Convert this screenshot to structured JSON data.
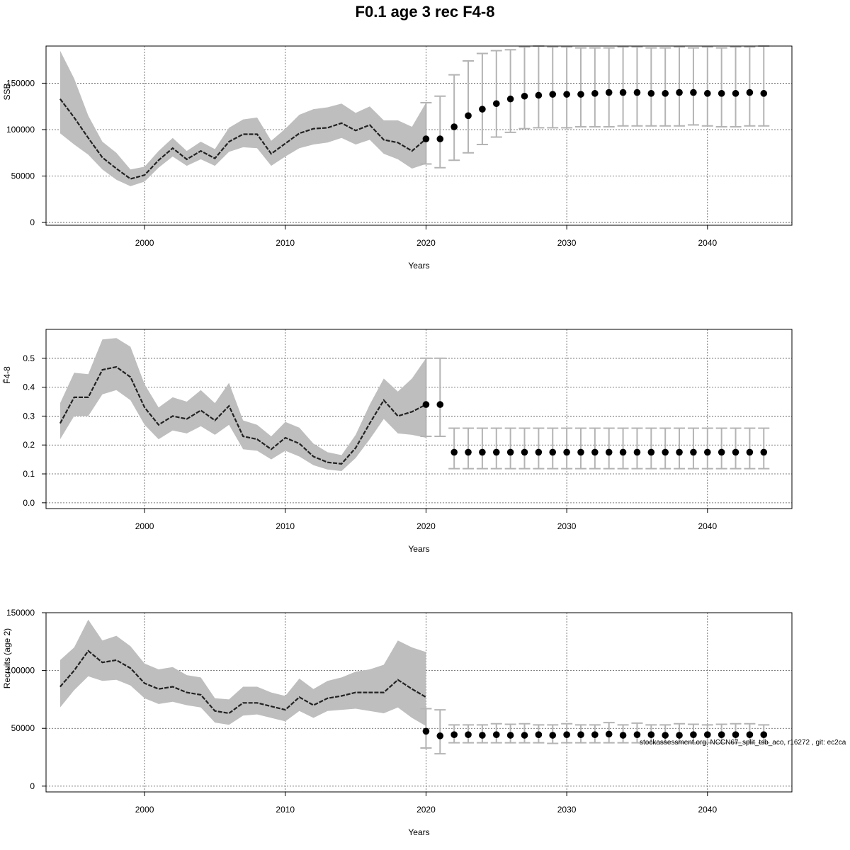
{
  "title": "F0.1 age 3 rec F4-8",
  "footnote": "stockassessment.org, NCCN67_split_tsb_aco, r16272 , git: ec2ca",
  "colors": {
    "band": "#bebebe",
    "line": "#222222",
    "errorbar": "#b4b4b4",
    "point": "#000000",
    "grid": "#555555"
  },
  "chart_data": [
    {
      "type": "line",
      "ylabel": "SSB",
      "xlabel": "Years",
      "xlim": [
        1993,
        2046
      ],
      "ylim": [
        -3000,
        190000
      ],
      "xticks": [
        2000,
        2010,
        2020,
        2030,
        2040
      ],
      "xtick_labels": [
        "2000",
        "2010",
        "2020",
        "2030",
        "2040"
      ],
      "yticks": [
        0,
        50000,
        100000,
        150000
      ],
      "ytick_labels": [
        "0",
        "50000",
        "100000",
        "150000"
      ],
      "grid": true,
      "historical": {
        "years": [
          1994,
          1995,
          1996,
          1997,
          1998,
          1999,
          2000,
          2001,
          2002,
          2003,
          2004,
          2005,
          2006,
          2007,
          2008,
          2009,
          2010,
          2011,
          2012,
          2013,
          2014,
          2015,
          2016,
          2017,
          2018,
          2019,
          2020
        ],
        "estimate": [
          133000,
          113000,
          91000,
          70000,
          58000,
          47000,
          51000,
          67000,
          80000,
          68000,
          77000,
          69000,
          87000,
          95000,
          95000,
          74000,
          85000,
          96000,
          101000,
          102000,
          107000,
          99000,
          105000,
          89000,
          86000,
          77000,
          90000
        ],
        "lower": [
          96000,
          84000,
          73000,
          57000,
          46000,
          39000,
          44000,
          59000,
          71000,
          61000,
          68000,
          61000,
          76000,
          81000,
          80000,
          61000,
          71000,
          80000,
          84000,
          86000,
          91000,
          84000,
          89000,
          74000,
          68000,
          58000,
          63000
        ],
        "upper": [
          185000,
          155000,
          115000,
          87000,
          75000,
          57000,
          60000,
          77000,
          91000,
          77000,
          87000,
          79000,
          102000,
          111000,
          113000,
          88000,
          101000,
          116000,
          122000,
          124000,
          128000,
          118000,
          125000,
          110000,
          110000,
          103000,
          129000
        ]
      },
      "forecast": {
        "years": [
          2020,
          2021,
          2022,
          2023,
          2024,
          2025,
          2026,
          2027,
          2028,
          2029,
          2030,
          2031,
          2032,
          2033,
          2034,
          2035,
          2036,
          2037,
          2038,
          2039,
          2040,
          2041,
          2042,
          2043,
          2044
        ],
        "median": [
          90000,
          90000,
          103000,
          115000,
          122000,
          128000,
          133000,
          136000,
          137000,
          138000,
          138000,
          138000,
          139000,
          140000,
          140000,
          140000,
          139000,
          139000,
          140000,
          140000,
          139000,
          139000,
          139000,
          140000,
          139000
        ],
        "lower": [
          63000,
          59000,
          67000,
          75000,
          84000,
          92000,
          97000,
          101000,
          102000,
          102000,
          102000,
          103000,
          103000,
          103000,
          104000,
          104000,
          104000,
          104000,
          104000,
          105000,
          104000,
          103000,
          103000,
          104000,
          104000
        ],
        "upper": [
          129000,
          136000,
          159000,
          174000,
          182000,
          185000,
          186000,
          189000,
          190000,
          189000,
          189000,
          188000,
          188000,
          188000,
          189000,
          189000,
          188000,
          188000,
          189000,
          188000,
          189000,
          188000,
          189000,
          189000,
          190000
        ]
      }
    },
    {
      "type": "line",
      "ylabel": "F̄4-8",
      "xlabel": "Years",
      "xlim": [
        1993,
        2046
      ],
      "ylim": [
        -0.02,
        0.6
      ],
      "xticks": [
        2000,
        2010,
        2020,
        2030,
        2040
      ],
      "xtick_labels": [
        "2000",
        "2010",
        "2020",
        "2030",
        "2040"
      ],
      "yticks": [
        0.0,
        0.1,
        0.2,
        0.3,
        0.4,
        0.5
      ],
      "ytick_labels": [
        "0.0",
        "0.1",
        "0.2",
        "0.3",
        "0.4",
        "0.5"
      ],
      "grid": true,
      "historical": {
        "years": [
          1994,
          1995,
          1996,
          1997,
          1998,
          1999,
          2000,
          2001,
          2002,
          2003,
          2004,
          2005,
          2006,
          2007,
          2008,
          2009,
          2010,
          2011,
          2012,
          2013,
          2014,
          2015,
          2016,
          2017,
          2018,
          2019,
          2020
        ],
        "estimate": [
          0.275,
          0.365,
          0.365,
          0.46,
          0.47,
          0.435,
          0.33,
          0.27,
          0.3,
          0.29,
          0.32,
          0.285,
          0.335,
          0.23,
          0.22,
          0.185,
          0.225,
          0.205,
          0.16,
          0.14,
          0.135,
          0.19,
          0.275,
          0.355,
          0.3,
          0.315,
          0.34
        ],
        "lower": [
          0.22,
          0.3,
          0.3,
          0.375,
          0.39,
          0.355,
          0.27,
          0.22,
          0.25,
          0.24,
          0.265,
          0.235,
          0.27,
          0.185,
          0.18,
          0.15,
          0.18,
          0.16,
          0.13,
          0.115,
          0.11,
          0.155,
          0.22,
          0.29,
          0.24,
          0.235,
          0.225
        ],
        "upper": [
          0.345,
          0.45,
          0.445,
          0.565,
          0.57,
          0.54,
          0.41,
          0.33,
          0.365,
          0.35,
          0.39,
          0.345,
          0.415,
          0.285,
          0.27,
          0.23,
          0.28,
          0.26,
          0.205,
          0.175,
          0.165,
          0.235,
          0.34,
          0.43,
          0.385,
          0.43,
          0.5
        ]
      },
      "forecast": {
        "years": [
          2020,
          2021,
          2022,
          2023,
          2024,
          2025,
          2026,
          2027,
          2028,
          2029,
          2030,
          2031,
          2032,
          2033,
          2034,
          2035,
          2036,
          2037,
          2038,
          2039,
          2040,
          2041,
          2042,
          2043,
          2044
        ],
        "median": [
          0.34,
          0.34,
          0.175,
          0.175,
          0.175,
          0.175,
          0.175,
          0.175,
          0.175,
          0.175,
          0.175,
          0.175,
          0.175,
          0.175,
          0.175,
          0.175,
          0.175,
          0.175,
          0.175,
          0.175,
          0.175,
          0.175,
          0.175,
          0.175,
          0.175
        ],
        "lower": [
          0.23,
          0.23,
          0.118,
          0.118,
          0.118,
          0.118,
          0.118,
          0.118,
          0.118,
          0.118,
          0.118,
          0.118,
          0.118,
          0.118,
          0.118,
          0.118,
          0.118,
          0.118,
          0.118,
          0.118,
          0.118,
          0.118,
          0.118,
          0.118,
          0.118
        ],
        "upper": [
          0.5,
          0.5,
          0.258,
          0.258,
          0.258,
          0.258,
          0.258,
          0.258,
          0.258,
          0.258,
          0.258,
          0.258,
          0.258,
          0.258,
          0.258,
          0.258,
          0.258,
          0.258,
          0.258,
          0.258,
          0.258,
          0.258,
          0.258,
          0.258,
          0.258
        ]
      }
    },
    {
      "type": "line",
      "ylabel": "Recruits (age 2)",
      "xlabel": "Years",
      "xlim": [
        1993,
        2046
      ],
      "ylim": [
        -5000,
        150000
      ],
      "xticks": [
        2000,
        2010,
        2020,
        2030,
        2040
      ],
      "xtick_labels": [
        "2000",
        "2010",
        "2020",
        "2030",
        "2040"
      ],
      "yticks": [
        0,
        50000,
        100000,
        150000
      ],
      "ytick_labels": [
        "0",
        "50000",
        "100000",
        "150000"
      ],
      "grid": true,
      "historical": {
        "years": [
          1994,
          1995,
          1996,
          1997,
          1998,
          1999,
          2000,
          2001,
          2002,
          2003,
          2004,
          2005,
          2006,
          2007,
          2008,
          2009,
          2010,
          2011,
          2012,
          2013,
          2014,
          2015,
          2016,
          2017,
          2018,
          2019,
          2020
        ],
        "estimate": [
          86000,
          100000,
          117000,
          107000,
          109000,
          102000,
          89000,
          84000,
          86000,
          81000,
          79000,
          65000,
          63000,
          72000,
          72000,
          69000,
          66000,
          77000,
          70000,
          76000,
          78000,
          81000,
          81000,
          81000,
          92000,
          84000,
          77000
        ],
        "lower": [
          68000,
          83000,
          95000,
          91000,
          92000,
          87000,
          76000,
          71000,
          73000,
          70000,
          68000,
          55000,
          53000,
          61000,
          62000,
          59000,
          56000,
          65000,
          59000,
          65000,
          66000,
          67000,
          65000,
          63000,
          68000,
          59000,
          52000
        ],
        "upper": [
          109000,
          120000,
          144000,
          126000,
          130000,
          121000,
          106000,
          101000,
          103000,
          96000,
          94000,
          76000,
          75000,
          86000,
          86000,
          81000,
          78000,
          93000,
          84000,
          91000,
          94000,
          99000,
          101000,
          105000,
          126000,
          120000,
          116000
        ]
      },
      "forecast": {
        "years": [
          2020,
          2021,
          2022,
          2023,
          2024,
          2025,
          2026,
          2027,
          2028,
          2029,
          2030,
          2031,
          2032,
          2033,
          2034,
          2035,
          2036,
          2037,
          2038,
          2039,
          2040,
          2041,
          2042,
          2043,
          2044
        ],
        "median": [
          47500,
          43500,
          44500,
          44500,
          44000,
          44500,
          44000,
          44000,
          44500,
          44000,
          44500,
          44500,
          44500,
          45000,
          44000,
          44500,
          44500,
          44000,
          44000,
          44500,
          44500,
          44500,
          44500,
          44500,
          44500
        ],
        "lower": [
          33000,
          28000,
          37500,
          37500,
          37500,
          37500,
          37500,
          37500,
          37500,
          37000,
          37500,
          37500,
          37500,
          37500,
          37500,
          37500,
          37500,
          37500,
          37500,
          37500,
          37500,
          37500,
          37500,
          37500,
          37500
        ],
        "upper": [
          67000,
          66000,
          53000,
          53000,
          53000,
          54000,
          53500,
          54000,
          53000,
          53000,
          54000,
          53000,
          53000,
          55000,
          53000,
          54500,
          53000,
          53000,
          54000,
          53500,
          53000,
          53500,
          54000,
          54000,
          53000
        ]
      }
    }
  ]
}
